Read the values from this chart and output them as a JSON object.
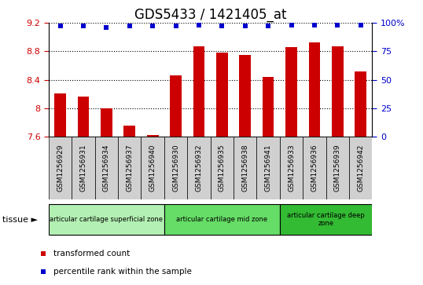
{
  "title": "GDS5433 / 1421405_at",
  "samples": [
    "GSM1256929",
    "GSM1256931",
    "GSM1256934",
    "GSM1256937",
    "GSM1256940",
    "GSM1256930",
    "GSM1256932",
    "GSM1256935",
    "GSM1256938",
    "GSM1256941",
    "GSM1256933",
    "GSM1256936",
    "GSM1256939",
    "GSM1256942"
  ],
  "bar_values": [
    8.21,
    8.17,
    8.0,
    7.76,
    7.63,
    8.46,
    8.87,
    8.78,
    8.75,
    8.44,
    8.86,
    8.92,
    8.87,
    8.52
  ],
  "percentile_values": [
    97,
    97,
    96,
    97,
    97,
    97,
    98,
    97,
    97,
    97,
    98,
    98,
    98,
    98
  ],
  "bar_color": "#cc0000",
  "percentile_color": "#0000cc",
  "ylim": [
    7.6,
    9.2
  ],
  "yticks": [
    7.6,
    8.0,
    8.4,
    8.8,
    9.2
  ],
  "right_yticks": [
    0,
    25,
    50,
    75,
    100
  ],
  "right_yticklabels": [
    "0",
    "25",
    "50",
    "75",
    "100%"
  ],
  "groups": [
    {
      "label": "articular cartilage superficial zone",
      "start": 0,
      "end": 5,
      "color": "#b3f0b3"
    },
    {
      "label": "articular cartilage mid zone",
      "start": 5,
      "end": 10,
      "color": "#66dd66"
    },
    {
      "label": "articular cartilage deep\nzone",
      "start": 10,
      "end": 14,
      "color": "#33bb33"
    }
  ],
  "background_color": "#ffffff",
  "xtick_bg": "#d0d0d0",
  "grid_color": "#000000",
  "title_fontsize": 12,
  "tick_fontsize": 8,
  "bar_width": 0.5
}
